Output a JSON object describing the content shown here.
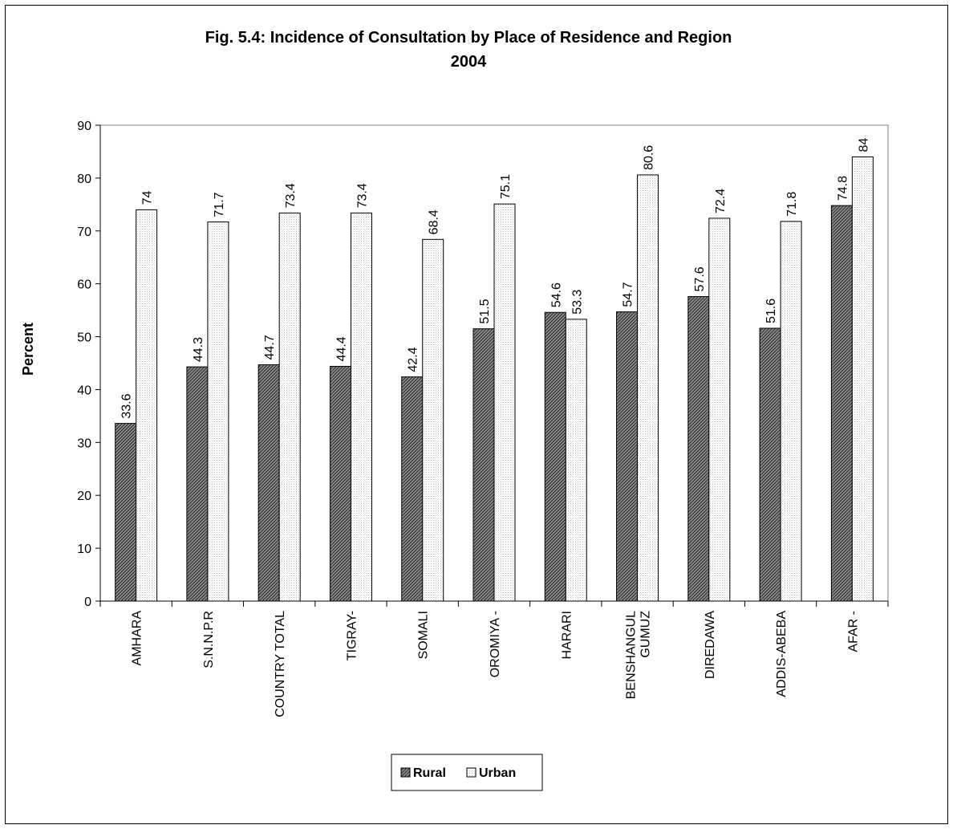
{
  "chart_data": {
    "type": "bar",
    "title": "Fig. 5.4: Incidence of Consultation by Place of Residence and Region",
    "subtitle": "2004",
    "xlabel": "",
    "ylabel": "Percent",
    "ylim": [
      0,
      90
    ],
    "yticks": [
      "0",
      "10",
      "20",
      "30",
      "40",
      "50",
      "60",
      "70",
      "80",
      "90"
    ],
    "grid": false,
    "legend_position": "bottom",
    "categories": [
      [
        "AMHARA"
      ],
      [
        "S.N.N.P.R"
      ],
      [
        "COUNTRY TOTAL"
      ],
      [
        "TIGRAY-"
      ],
      [
        "SOMALI"
      ],
      [
        "OROMIYA -"
      ],
      [
        "HARARI"
      ],
      [
        "BENSHANGUL",
        "GUMUZ"
      ],
      [
        "DIREDAWA"
      ],
      [
        "ADDIS-ABEBA"
      ],
      [
        "AFAR -"
      ]
    ],
    "series": [
      {
        "name": "Rural",
        "fill": "hatched",
        "values": [
          33.6,
          44.3,
          44.7,
          44.4,
          42.4,
          51.5,
          54.6,
          54.7,
          57.6,
          51.6,
          74.8
        ],
        "labels": [
          "33.6",
          "44.3",
          "44.7",
          "44.4",
          "42.4",
          "51.5",
          "54.6",
          "54.7",
          "57.6",
          "51.6",
          "74.8"
        ]
      },
      {
        "name": "Urban",
        "fill": "dotted",
        "values": [
          74,
          71.7,
          73.4,
          73.4,
          68.4,
          75.1,
          53.3,
          80.6,
          72.4,
          71.8,
          84
        ],
        "labels": [
          "74",
          "71.7",
          "73.4",
          "73.4",
          "68.4",
          "75.1",
          "53.3",
          "80.6",
          "72.4",
          "71.8",
          "84"
        ]
      }
    ]
  }
}
